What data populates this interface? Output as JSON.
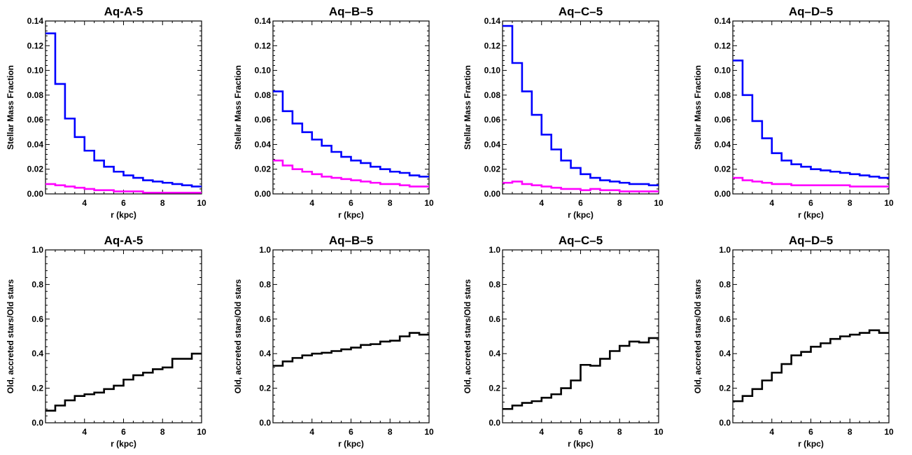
{
  "chart_data": [
    {
      "type": "line",
      "title": "Aq-A-5",
      "xlabel": "r (kpc)",
      "ylabel": "Stellar Mass Fraction",
      "xlim": [
        2,
        10
      ],
      "ylim": [
        0,
        0.14
      ],
      "x_ticks": [
        "4",
        "6",
        "8",
        "10"
      ],
      "y_ticks": [
        "0.00",
        "0.02",
        "0.04",
        "0.06",
        "0.08",
        "0.10",
        "0.12",
        "0.14"
      ],
      "grid": false,
      "colors": [
        "#0000ff",
        "#ff00ff"
      ],
      "bin_edges": [
        2.0,
        2.5,
        3.0,
        3.5,
        4.0,
        4.5,
        5.0,
        5.5,
        6.0,
        6.5,
        7.0,
        7.5,
        8.0,
        8.5,
        9.0,
        9.5,
        10.0
      ],
      "series": [
        {
          "values": [
            0.13,
            0.089,
            0.061,
            0.046,
            0.035,
            0.027,
            0.022,
            0.018,
            0.015,
            0.013,
            0.011,
            0.01,
            0.009,
            0.008,
            0.007,
            0.006
          ]
        },
        {
          "values": [
            0.008,
            0.007,
            0.006,
            0.005,
            0.004,
            0.003,
            0.003,
            0.002,
            0.002,
            0.002,
            0.001,
            0.001,
            0.001,
            0.001,
            0.001,
            0.001
          ]
        }
      ]
    },
    {
      "type": "line",
      "title": "Aq–B–5",
      "xlabel": "r (kpc)",
      "ylabel": "Stellar Mass Fraction",
      "xlim": [
        2,
        10
      ],
      "ylim": [
        0,
        0.14
      ],
      "x_ticks": [
        "4",
        "6",
        "8",
        "10"
      ],
      "y_ticks": [
        "0.00",
        "0.02",
        "0.04",
        "0.06",
        "0.08",
        "0.10",
        "0.12",
        "0.14"
      ],
      "grid": false,
      "colors": [
        "#0000ff",
        "#ff00ff"
      ],
      "bin_edges": [
        2.0,
        2.5,
        3.0,
        3.5,
        4.0,
        4.5,
        5.0,
        5.5,
        6.0,
        6.5,
        7.0,
        7.5,
        8.0,
        8.5,
        9.0,
        9.5,
        10.0
      ],
      "series": [
        {
          "values": [
            0.083,
            0.067,
            0.057,
            0.05,
            0.044,
            0.039,
            0.034,
            0.03,
            0.027,
            0.025,
            0.022,
            0.02,
            0.018,
            0.017,
            0.015,
            0.014
          ]
        },
        {
          "values": [
            0.027,
            0.023,
            0.02,
            0.018,
            0.016,
            0.014,
            0.013,
            0.012,
            0.011,
            0.01,
            0.009,
            0.008,
            0.008,
            0.007,
            0.006,
            0.006
          ]
        }
      ]
    },
    {
      "type": "line",
      "title": "Aq–C–5",
      "xlabel": "r (kpc)",
      "ylabel": "Stellar Mass Fraction",
      "xlim": [
        2,
        10
      ],
      "ylim": [
        0,
        0.14
      ],
      "x_ticks": [
        "4",
        "6",
        "8",
        "10"
      ],
      "y_ticks": [
        "0.00",
        "0.02",
        "0.04",
        "0.06",
        "0.08",
        "0.10",
        "0.12",
        "0.14"
      ],
      "grid": false,
      "colors": [
        "#0000ff",
        "#ff00ff"
      ],
      "bin_edges": [
        2.0,
        2.5,
        3.0,
        3.5,
        4.0,
        4.5,
        5.0,
        5.5,
        6.0,
        6.5,
        7.0,
        7.5,
        8.0,
        8.5,
        9.0,
        9.5,
        10.0
      ],
      "series": [
        {
          "values": [
            0.136,
            0.106,
            0.083,
            0.064,
            0.048,
            0.036,
            0.027,
            0.021,
            0.016,
            0.013,
            0.011,
            0.01,
            0.009,
            0.008,
            0.008,
            0.007
          ]
        },
        {
          "values": [
            0.009,
            0.01,
            0.008,
            0.007,
            0.006,
            0.005,
            0.004,
            0.004,
            0.003,
            0.004,
            0.003,
            0.003,
            0.002,
            0.002,
            0.002,
            0.002
          ]
        }
      ]
    },
    {
      "type": "line",
      "title": "Aq–D–5",
      "xlabel": "r (kpc)",
      "ylabel": "Stellar Mass Fraction",
      "xlim": [
        2,
        10
      ],
      "ylim": [
        0,
        0.14
      ],
      "x_ticks": [
        "4",
        "6",
        "8",
        "10"
      ],
      "y_ticks": [
        "0.00",
        "0.02",
        "0.04",
        "0.06",
        "0.08",
        "0.10",
        "0.12",
        "0.14"
      ],
      "grid": false,
      "colors": [
        "#0000ff",
        "#ff00ff"
      ],
      "bin_edges": [
        2.0,
        2.5,
        3.0,
        3.5,
        4.0,
        4.5,
        5.0,
        5.5,
        6.0,
        6.5,
        7.0,
        7.5,
        8.0,
        8.5,
        9.0,
        9.5,
        10.0
      ],
      "series": [
        {
          "values": [
            0.108,
            0.08,
            0.059,
            0.045,
            0.033,
            0.027,
            0.024,
            0.022,
            0.02,
            0.019,
            0.018,
            0.017,
            0.016,
            0.015,
            0.014,
            0.013
          ]
        },
        {
          "values": [
            0.013,
            0.011,
            0.01,
            0.009,
            0.008,
            0.008,
            0.007,
            0.007,
            0.007,
            0.007,
            0.007,
            0.007,
            0.006,
            0.006,
            0.006,
            0.006
          ]
        }
      ]
    },
    {
      "type": "line",
      "title": "Aq-A-5",
      "xlabel": "r (kpc)",
      "ylabel": "Old, accreted stars/Old stars",
      "xlim": [
        2,
        10
      ],
      "ylim": [
        0,
        1
      ],
      "x_ticks": [
        "4",
        "6",
        "8",
        "10"
      ],
      "y_ticks": [
        "0.0",
        "0.2",
        "0.4",
        "0.6",
        "0.8",
        "1.0"
      ],
      "grid": false,
      "colors": [
        "#000000"
      ],
      "bin_edges": [
        2.0,
        2.5,
        3.0,
        3.5,
        4.0,
        4.5,
        5.0,
        5.5,
        6.0,
        6.5,
        7.0,
        7.5,
        8.0,
        8.5,
        9.0,
        9.5,
        10.0
      ],
      "series": [
        {
          "values": [
            0.07,
            0.1,
            0.13,
            0.155,
            0.165,
            0.175,
            0.195,
            0.215,
            0.25,
            0.275,
            0.29,
            0.31,
            0.32,
            0.37,
            0.37,
            0.4
          ]
        }
      ]
    },
    {
      "type": "line",
      "title": "Aq–B–5",
      "xlabel": "r (kpc)",
      "ylabel": "Old, accreted stars/Old stars",
      "xlim": [
        2,
        10
      ],
      "ylim": [
        0,
        1
      ],
      "x_ticks": [
        "4",
        "6",
        "8",
        "10"
      ],
      "y_ticks": [
        "0.0",
        "0.2",
        "0.4",
        "0.6",
        "0.8",
        "1.0"
      ],
      "grid": false,
      "colors": [
        "#000000"
      ],
      "bin_edges": [
        2.0,
        2.5,
        3.0,
        3.5,
        4.0,
        4.5,
        5.0,
        5.5,
        6.0,
        6.5,
        7.0,
        7.5,
        8.0,
        8.5,
        9.0,
        9.5,
        10.0
      ],
      "series": [
        {
          "values": [
            0.33,
            0.355,
            0.375,
            0.39,
            0.4,
            0.405,
            0.415,
            0.425,
            0.435,
            0.45,
            0.455,
            0.47,
            0.475,
            0.5,
            0.52,
            0.51
          ]
        }
      ]
    },
    {
      "type": "line",
      "title": "Aq–C–5",
      "xlabel": "r (kpc)",
      "ylabel": "Old, accreted stars/Old stars",
      "xlim": [
        2,
        10
      ],
      "ylim": [
        0,
        1
      ],
      "x_ticks": [
        "4",
        "6",
        "8",
        "10"
      ],
      "y_ticks": [
        "0.0",
        "0.2",
        "0.4",
        "0.6",
        "0.8",
        "1.0"
      ],
      "grid": false,
      "colors": [
        "#000000"
      ],
      "bin_edges": [
        2.0,
        2.5,
        3.0,
        3.5,
        4.0,
        4.5,
        5.0,
        5.5,
        6.0,
        6.5,
        7.0,
        7.5,
        8.0,
        8.5,
        9.0,
        9.5,
        10.0
      ],
      "series": [
        {
          "values": [
            0.08,
            0.1,
            0.115,
            0.125,
            0.145,
            0.165,
            0.2,
            0.245,
            0.335,
            0.33,
            0.37,
            0.415,
            0.445,
            0.47,
            0.465,
            0.49
          ]
        }
      ]
    },
    {
      "type": "line",
      "title": "Aq–D–5",
      "xlabel": "r (kpc)",
      "ylabel": "Old, accreted stars/Old stars",
      "xlim": [
        2,
        10
      ],
      "ylim": [
        0,
        1
      ],
      "x_ticks": [
        "4",
        "6",
        "8",
        "10"
      ],
      "y_ticks": [
        "0.0",
        "0.2",
        "0.4",
        "0.6",
        "0.8",
        "1.0"
      ],
      "grid": false,
      "colors": [
        "#000000"
      ],
      "bin_edges": [
        2.0,
        2.5,
        3.0,
        3.5,
        4.0,
        4.5,
        5.0,
        5.5,
        6.0,
        6.5,
        7.0,
        7.5,
        8.0,
        8.5,
        9.0,
        9.5,
        10.0
      ],
      "series": [
        {
          "values": [
            0.125,
            0.155,
            0.195,
            0.245,
            0.29,
            0.34,
            0.39,
            0.41,
            0.44,
            0.46,
            0.485,
            0.5,
            0.51,
            0.52,
            0.535,
            0.52
          ]
        }
      ]
    }
  ]
}
